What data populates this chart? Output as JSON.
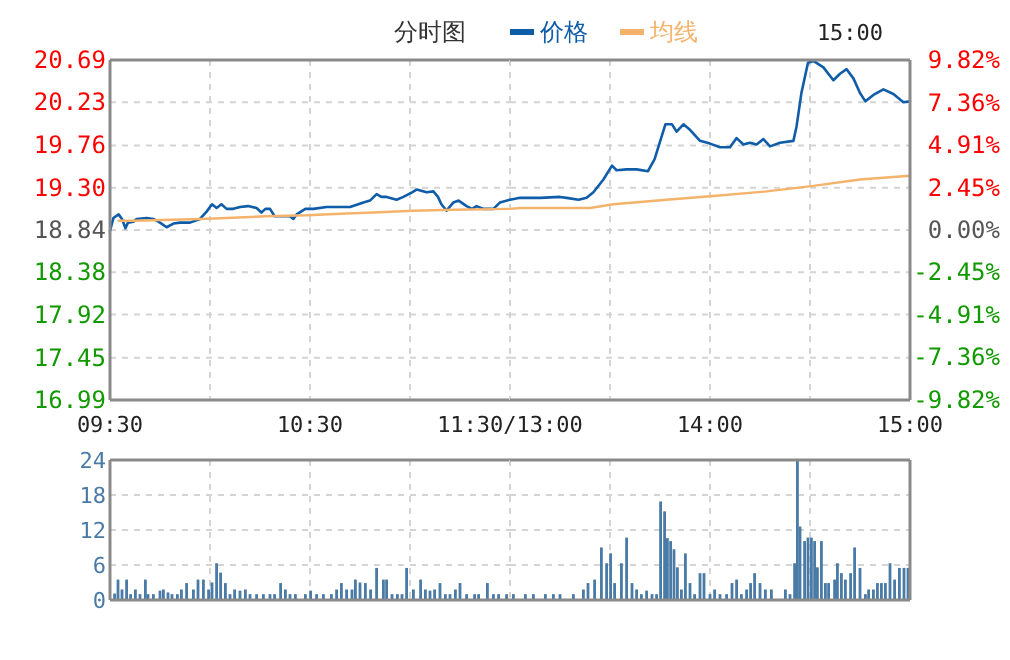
{
  "chart_data": [
    {
      "type": "line",
      "title": "分时图",
      "annotations": [
        "15:00"
      ],
      "legend": "top",
      "grid": true,
      "xlim": [
        9.5,
        11.5
      ],
      "xticks": [
        {
          "value": 9.5,
          "label": "09:30"
        },
        {
          "value": 10,
          "label": null
        },
        {
          "value": 10.5,
          "label": "10:30"
        },
        {
          "value": 11,
          "label": null
        },
        {
          "value": 11.5,
          "label": "11:30/13:00"
        }
      ],
      "ylim": [
        16.99,
        20.69
      ],
      "yticks": [
        16.99,
        17.45,
        17.92,
        18.38,
        18.84,
        {
          "value": 19.3,
          "label": "19.30"
        },
        19.76,
        20.23,
        20.69
      ],
      "series": [
        {
          "name": "价格",
          "color": "#0f5ca8",
          "x": [
            9.5,
            9.517,
            9.543,
            9.56,
            9.577,
            9.59,
            9.617,
            9.633,
            9.683,
            9.717,
            9.75,
            9.783,
            9.817,
            9.85,
            9.9,
            9.95,
            9.983,
            10.01,
            10.033,
            10.057,
            10.083,
            10.117,
            10.15,
            10.19,
            10.233,
            10.257,
            10.277,
            10.3,
            10.323,
            10.367,
            10.4,
            10.417,
            10.433,
            10.477,
            10.517,
            10.583,
            10.7,
            10.767,
            10.8,
            10.833,
            10.857,
            10.883,
            10.933,
            10.967,
            11.01,
            11.033,
            11.083,
            11.117,
            11.14,
            11.157,
            11.183,
            11.217,
            11.243,
            11.283,
            11.31,
            11.333,
            11.367,
            11.417,
            11.45,
            11.5
          ],
          "values": [
            18.83,
            18.97,
            19.01,
            18.96,
            18.86,
            18.92,
            18.93,
            18.96,
            18.97,
            18.96,
            18.92,
            18.87,
            18.91,
            18.92,
            18.92,
            18.96,
            19.04,
            19.12,
            19.08,
            19.12,
            19.07,
            19.07,
            19.09,
            19.1,
            19.08,
            19.03,
            19.07,
            19.07,
            18.99,
            18.99,
            18.99,
            18.96,
            19.01,
            19.07,
            19.07,
            19.09,
            19.09,
            19.14,
            19.16,
            19.23,
            19.2,
            19.2,
            19.17,
            19.2,
            19.25,
            19.28,
            19.25,
            19.26,
            19.2,
            19.12,
            19.05,
            19.14,
            19.16,
            19.1,
            19.07,
            19.1,
            19.07,
            19.07,
            19.14,
            19.17
          ]
        },
        {
          "name": "均线",
          "color": "#f5b26b",
          "x": [
            9.543,
            9.617,
            9.95,
            10.083,
            10.283,
            10.483,
            10.683,
            10.817,
            11.017,
            11.217,
            11.5
          ],
          "values": [
            18.94,
            18.94,
            18.96,
            18.97,
            18.99,
            19.0,
            19.02,
            19.03,
            19.05,
            19.06,
            19.07
          ]
        }
      ]
    },
    {
      "type": "line",
      "grid": true,
      "tick_labels": "x",
      "xlim": [
        13,
        15
      ],
      "xticks": [
        {
          "value": 13,
          "label": null
        },
        {
          "value": 13.5,
          "label": null
        },
        {
          "value": 14,
          "label": "14:00"
        },
        {
          "value": 14.5,
          "label": null
        },
        {
          "value": 15,
          "label": "15:00"
        }
      ],
      "ylim": [
        16.99,
        20.69
      ],
      "yticks": [
        16.99,
        17.45,
        17.92,
        18.38,
        18.84,
        19.3,
        19.76,
        20.23,
        20.69
      ],
      "y2lim": [
        -9.82,
        9.82
      ],
      "y2ticks": [
        {
          "value": -9.82,
          "label": "-9.82%"
        },
        {
          "value": -7.36,
          "label": "-7.36%"
        },
        {
          "value": -4.91,
          "label": "-4.91%"
        },
        {
          "value": -2.45,
          "label": "-2.45%"
        },
        {
          "value": 0,
          "label": "0.00%"
        },
        {
          "value": 2.45,
          "label": "2.45%"
        },
        {
          "value": 4.91,
          "label": "4.91%"
        },
        {
          "value": 7.36,
          "label": "7.36%"
        },
        {
          "value": 9.82,
          "label": "9.82%"
        }
      ],
      "series": [
        {
          "color": "#0f5ca8",
          "x": [
            13,
            13.05,
            13.15,
            13.25,
            13.283,
            13.343,
            13.383,
            13.417,
            13.467,
            13.51,
            13.533,
            13.583,
            13.633,
            13.69,
            13.723,
            13.777,
            13.81,
            13.833,
            13.867,
            13.9,
            13.95,
            14,
            14.05,
            14.1,
            14.133,
            14.167,
            14.2,
            14.233,
            14.267,
            14.3,
            14.35,
            14.417,
            14.433,
            14.457,
            14.49,
            14.517,
            14.567,
            14.617,
            14.65,
            14.683,
            14.717,
            14.75,
            14.777,
            14.817,
            14.867,
            14.917,
            14.967,
            15
          ],
          "values": [
            19.17,
            19.19,
            19.19,
            19.2,
            19.19,
            19.17,
            19.19,
            19.25,
            19.39,
            19.54,
            19.49,
            19.5,
            19.5,
            19.48,
            19.61,
            19.99,
            19.99,
            19.91,
            19.99,
            19.93,
            19.81,
            19.78,
            19.74,
            19.74,
            19.84,
            19.77,
            19.79,
            19.77,
            19.83,
            19.75,
            19.79,
            19.81,
            19.97,
            20.33,
            20.66,
            20.68,
            20.61,
            20.47,
            20.54,
            20.59,
            20.49,
            20.33,
            20.24,
            20.31,
            20.37,
            20.32,
            20.23,
            20.24
          ]
        },
        {
          "color": "#f5b26b",
          "x": [
            13,
            13.05,
            13.4,
            13.517,
            13.783,
            14.017,
            14.283,
            14.517,
            14.75,
            15
          ],
          "values": [
            19.07,
            19.08,
            19.08,
            19.12,
            19.17,
            19.21,
            19.26,
            19.32,
            19.39,
            19.43
          ]
        }
      ]
    },
    {
      "type": "bar",
      "color": "#4a7aa6",
      "grid": true,
      "tick_labels": "y",
      "xlim": [
        9.5,
        11.5
      ],
      "xticks": [
        9.5,
        10,
        10.5,
        11,
        11.5
      ],
      "ylim": [
        0,
        24
      ],
      "yticks": [
        0,
        6,
        12,
        18,
        24
      ],
      "x": [
        9.523,
        9.54,
        9.56,
        9.583,
        9.603,
        9.627,
        9.65,
        9.677,
        9.69,
        9.717,
        9.75,
        9.767,
        9.79,
        9.81,
        9.837,
        9.857,
        9.883,
        9.917,
        9.94,
        9.967,
        9.993,
        10.01,
        10.033,
        10.053,
        10.077,
        10.1,
        10.123,
        10.15,
        10.177,
        10.2,
        10.233,
        10.267,
        10.3,
        10.323,
        10.353,
        10.377,
        10.4,
        10.427,
        10.477,
        10.503,
        10.533,
        10.567,
        10.607,
        10.633,
        10.657,
        10.683,
        10.71,
        10.727,
        10.75,
        10.777,
        10.803,
        10.833,
        10.867,
        10.883,
        10.91,
        10.937,
        10.96,
        10.983,
        11.017,
        11.053,
        11.077,
        11.1,
        11.123,
        11.15,
        11.177,
        11.2,
        11.227,
        11.25,
        11.283,
        11.323,
        11.343,
        11.387,
        11.417,
        11.443,
        11.483
      ],
      "values": [
        1.1,
        3.5,
        1.8,
        3.5,
        1.0,
        1.8,
        1.0,
        3.5,
        1.0,
        1.0,
        1.6,
        1.8,
        1.3,
        1.0,
        1.0,
        1.8,
        2.9,
        1.8,
        3.5,
        3.5,
        1.8,
        3.0,
        6.3,
        4.7,
        2.9,
        1.0,
        1.8,
        1.6,
        1.8,
        1.0,
        1.0,
        1.0,
        1.0,
        1.0,
        2.9,
        1.8,
        1.0,
        1.0,
        1.0,
        1.6,
        1.0,
        1.0,
        1.0,
        1.8,
        2.9,
        1.8,
        1.8,
        3.5,
        3.0,
        2.9,
        1.8,
        5.5,
        3.5,
        3.5,
        1.0,
        1.0,
        1.0,
        5.5,
        1.8,
        3.5,
        1.8,
        1.6,
        1.8,
        2.9,
        1.0,
        1.0,
        1.8,
        2.9,
        1.0,
        1.0,
        1.0,
        2.9,
        1.0,
        1.0,
        1.0
      ]
    },
    {
      "type": "bar",
      "color": "#4a7aa6",
      "grid": true,
      "tick_labels": false,
      "xlim": [
        13,
        15
      ],
      "xticks": [
        13,
        13.5,
        14,
        14.5,
        15
      ],
      "ylim": [
        0,
        24
      ],
      "yticks": [
        0,
        6,
        12,
        18,
        24
      ],
      "x": [
        13.017,
        13.077,
        13.117,
        13.177,
        13.217,
        13.25,
        13.317,
        13.367,
        13.39,
        13.423,
        13.457,
        13.483,
        13.503,
        13.523,
        13.557,
        13.583,
        13.61,
        13.633,
        13.657,
        13.683,
        13.71,
        13.733,
        13.753,
        13.773,
        13.787,
        13.803,
        13.82,
        13.837,
        13.857,
        13.877,
        13.9,
        13.923,
        13.95,
        13.97,
        14,
        14.023,
        14.05,
        14.083,
        14.11,
        14.133,
        14.157,
        14.183,
        14.203,
        14.223,
        14.25,
        14.277,
        14.307,
        14.323,
        14.377,
        14.4,
        14.423,
        14.437,
        14.45,
        14.473,
        14.49,
        14.507,
        14.523,
        14.537,
        14.557,
        14.577,
        14.593,
        14.623,
        14.637,
        14.657,
        14.677,
        14.703,
        14.723,
        14.75,
        14.777,
        14.793,
        14.817,
        14.837,
        14.857,
        14.877,
        14.9,
        14.923,
        14.947,
        14.97,
        14.99
      ],
      "values": [
        1.0,
        1.0,
        1.0,
        1.0,
        1.0,
        1.0,
        1.0,
        1.8,
        2.9,
        3.5,
        9.0,
        6.3,
        8.0,
        2.9,
        6.3,
        10.7,
        2.9,
        1.8,
        1.0,
        1.6,
        1.0,
        1.0,
        16.9,
        15.2,
        10.6,
        10.1,
        8.7,
        5.6,
        1.8,
        8.0,
        2.9,
        1.0,
        4.6,
        4.6,
        1.0,
        1.8,
        1.0,
        1.0,
        2.9,
        3.5,
        1.0,
        1.8,
        2.9,
        4.6,
        2.9,
        1.8,
        1.8,
        0.1,
        1.8,
        1.0,
        6.3,
        24,
        12.6,
        10.1,
        10.7,
        10.7,
        10.1,
        5.6,
        10.1,
        2.9,
        2.9,
        3.5,
        6.3,
        4.6,
        3.5,
        4.6,
        9.0,
        5.5,
        1.0,
        1.8,
        1.8,
        2.9,
        2.9,
        2.9,
        6.3,
        3.5,
        5.5,
        5.5,
        5.5
      ]
    }
  ]
}
